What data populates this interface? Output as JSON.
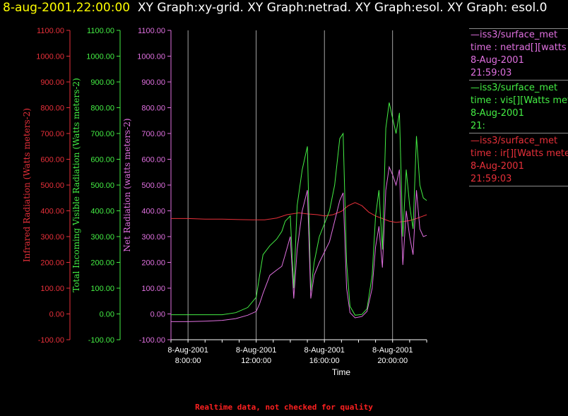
{
  "header": {
    "timestamp": "8-aug-2001,22:00:00",
    "title_rest": "XY Graph:xy-grid.  XY Graph:netrad.  XY Graph:esol.  XY Graph: esol.0"
  },
  "colors": {
    "ir": "#e8303a",
    "vis": "#44ee44",
    "netrad": "#e070e0",
    "grid": "#cccccc",
    "axis_x": "#ffffff"
  },
  "footer": {
    "quality_note": "Realtime data, not checked for quality"
  },
  "legend": [
    {
      "name": "netrad",
      "lines": [
        "—iss3/surface_met",
        "time : netrad[][watts me",
        "8-Aug-2001",
        "21:59:03"
      ]
    },
    {
      "name": "vis",
      "lines": [
        "—iss3/surface_met",
        "time : vis[][Watts meter",
        "8-Aug-2001",
        "21:"
      ]
    },
    {
      "name": "ir",
      "lines": [
        "—iss3/surface_met",
        "time : ir[][Watts meters",
        "8-Aug-2001",
        "21:59:03"
      ]
    }
  ],
  "chart_data": {
    "type": "line",
    "xlabel": "Time",
    "x_ticks": [
      {
        "hour": 8,
        "date": "8-Aug-2001",
        "time": "8:00:00"
      },
      {
        "hour": 12,
        "date": "8-Aug-2001",
        "time": "12:00:00"
      },
      {
        "hour": 16,
        "date": "8-Aug-2001",
        "time": "16:00:00"
      },
      {
        "hour": 20,
        "date": "8-Aug-2001",
        "time": "20:00:00"
      }
    ],
    "xlim_hours": [
      7,
      22
    ],
    "ylim": [
      -100,
      1100
    ],
    "y_ticks": [
      "1100.00",
      "1000.00",
      "900.00",
      "800.00",
      "700.00",
      "600.00",
      "500.00",
      "400.00",
      "300.00",
      "200.00",
      "100.00",
      "0.00",
      "-100.00"
    ],
    "axes": [
      {
        "name": "ir",
        "label": "Infrared Radiation (Watts meters-2)"
      },
      {
        "name": "vis",
        "label": "Total Incoming Visible Radiation (Watts meters-2)"
      },
      {
        "name": "netrad",
        "label": "Net Radiation (watts meters-2)"
      }
    ],
    "series": [
      {
        "name": "ir",
        "axis": "ir",
        "points": [
          [
            7,
            370
          ],
          [
            8,
            370
          ],
          [
            9,
            368
          ],
          [
            10,
            368
          ],
          [
            11,
            366
          ],
          [
            11.8,
            365
          ],
          [
            12.5,
            365
          ],
          [
            13.2,
            372
          ],
          [
            13.8,
            385
          ],
          [
            14.5,
            392
          ],
          [
            15,
            388
          ],
          [
            15.6,
            385
          ],
          [
            16,
            380
          ],
          [
            16.5,
            385
          ],
          [
            17,
            398
          ],
          [
            17.4,
            420
          ],
          [
            17.8,
            432
          ],
          [
            18.2,
            420
          ],
          [
            18.6,
            395
          ],
          [
            19,
            380
          ],
          [
            19.4,
            370
          ],
          [
            19.8,
            360
          ],
          [
            20.2,
            355
          ],
          [
            20.6,
            358
          ],
          [
            21,
            362
          ],
          [
            21.4,
            370
          ],
          [
            21.8,
            380
          ],
          [
            22,
            385
          ]
        ]
      },
      {
        "name": "vis",
        "axis": "vis",
        "points": [
          [
            7,
            -3
          ],
          [
            8,
            -3
          ],
          [
            9,
            -3
          ],
          [
            10,
            -3
          ],
          [
            10.8,
            5
          ],
          [
            11.5,
            25
          ],
          [
            12,
            65
          ],
          [
            12.2,
            150
          ],
          [
            12.4,
            230
          ],
          [
            12.8,
            265
          ],
          [
            13.2,
            290
          ],
          [
            13.5,
            320
          ],
          [
            13.7,
            360
          ],
          [
            14,
            380
          ],
          [
            14.2,
            100
          ],
          [
            14.4,
            420
          ],
          [
            14.7,
            560
          ],
          [
            15,
            650
          ],
          [
            15.2,
            90
          ],
          [
            15.4,
            200
          ],
          [
            15.7,
            300
          ],
          [
            16,
            350
          ],
          [
            16.3,
            400
          ],
          [
            16.6,
            500
          ],
          [
            16.9,
            680
          ],
          [
            17.1,
            700
          ],
          [
            17.3,
            200
          ],
          [
            17.5,
            30
          ],
          [
            17.8,
            -5
          ],
          [
            18.2,
            -2
          ],
          [
            18.5,
            20
          ],
          [
            18.8,
            150
          ],
          [
            19,
            380
          ],
          [
            19.2,
            480
          ],
          [
            19.4,
            250
          ],
          [
            19.6,
            720
          ],
          [
            19.8,
            820
          ],
          [
            20,
            760
          ],
          [
            20.2,
            700
          ],
          [
            20.4,
            780
          ],
          [
            20.6,
            300
          ],
          [
            20.8,
            560
          ],
          [
            21,
            420
          ],
          [
            21.2,
            330
          ],
          [
            21.4,
            690
          ],
          [
            21.6,
            500
          ],
          [
            21.8,
            450
          ],
          [
            22,
            440
          ]
        ]
      },
      {
        "name": "netrad",
        "axis": "netrad",
        "points": [
          [
            7,
            -30
          ],
          [
            8,
            -30
          ],
          [
            9,
            -28
          ],
          [
            10,
            -25
          ],
          [
            10.8,
            -18
          ],
          [
            11.5,
            -5
          ],
          [
            12,
            10
          ],
          [
            12.2,
            40
          ],
          [
            12.4,
            80
          ],
          [
            12.8,
            150
          ],
          [
            13.2,
            170
          ],
          [
            13.5,
            185
          ],
          [
            13.7,
            230
          ],
          [
            14,
            300
          ],
          [
            14.2,
            60
          ],
          [
            14.4,
            250
          ],
          [
            14.7,
            400
          ],
          [
            15,
            480
          ],
          [
            15.2,
            60
          ],
          [
            15.4,
            150
          ],
          [
            15.7,
            200
          ],
          [
            16,
            240
          ],
          [
            16.3,
            280
          ],
          [
            16.6,
            360
          ],
          [
            16.9,
            440
          ],
          [
            17.1,
            470
          ],
          [
            17.3,
            100
          ],
          [
            17.5,
            5
          ],
          [
            17.8,
            -15
          ],
          [
            18.2,
            -10
          ],
          [
            18.5,
            10
          ],
          [
            18.8,
            100
          ],
          [
            19,
            260
          ],
          [
            19.2,
            340
          ],
          [
            19.4,
            180
          ],
          [
            19.6,
            480
          ],
          [
            19.8,
            570
          ],
          [
            20,
            540
          ],
          [
            20.2,
            500
          ],
          [
            20.4,
            560
          ],
          [
            20.6,
            190
          ],
          [
            20.8,
            400
          ],
          [
            21,
            300
          ],
          [
            21.2,
            230
          ],
          [
            21.4,
            480
          ],
          [
            21.6,
            330
          ],
          [
            21.8,
            300
          ],
          [
            22,
            305
          ]
        ]
      }
    ]
  }
}
